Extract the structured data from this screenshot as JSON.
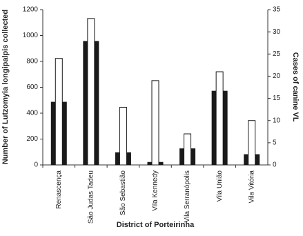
{
  "chart_data": {
    "type": "bar",
    "categories": [
      "Renascença",
      "São Judas Tadeu",
      "São Sebastião",
      "Vila Kennedy",
      "Vila Serranópolis",
      "Vila União",
      "Vila Vitória"
    ],
    "series": [
      {
        "name": "Number of Lutzomyia longipalpis collected",
        "color": "#1a1a1a",
        "values": [
          485,
          955,
          95,
          20,
          125,
          570,
          80
        ]
      },
      {
        "name": "Cases of canine VL",
        "color": "#ffffff",
        "axis": "y2",
        "values": [
          24,
          33,
          13,
          19,
          7,
          21,
          10
        ]
      }
    ],
    "xlabel": "District of Porteirinha",
    "ylabel": "Number of Lutzomyia longipalpis collected",
    "y2label": "Cases of canine VL",
    "ylim": [
      0,
      1200
    ],
    "yticks": [
      0,
      200,
      400,
      600,
      800,
      1000,
      1200
    ],
    "y2lim": [
      0,
      35
    ],
    "y2ticks": [
      0,
      5,
      10,
      15,
      20,
      25,
      30,
      35
    ],
    "grid": false
  }
}
